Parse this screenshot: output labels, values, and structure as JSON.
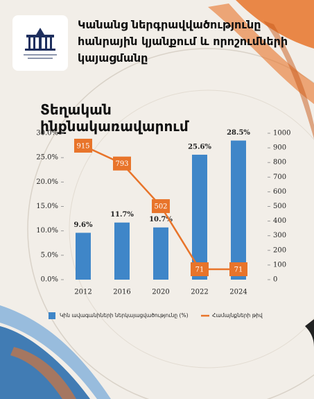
{
  "chart_data": {
    "type": "bar",
    "title": "Կանանց ներգրավվածությունը հանրային կյանքում և որոշումների կայացմանը",
    "subtitle": "Տեղական ինքնակառավարում",
    "categories": [
      "2012",
      "2016",
      "2020",
      "2022",
      "2024"
    ],
    "series": [
      {
        "name": "Կին ավագանիների ներկայացվածությունը (%)",
        "type": "bar",
        "color": "#3f86c8",
        "values": [
          9.6,
          11.7,
          10.7,
          25.6,
          28.5
        ],
        "value_labels": [
          "9.6%",
          "11.7%",
          "10.7%",
          "25.6%",
          "28.5%"
        ]
      },
      {
        "name": "Համայնքների թիվ",
        "type": "line",
        "axis": "y2",
        "color": "#e8742a",
        "values": [
          915,
          793,
          502,
          71,
          71
        ]
      }
    ],
    "ylim": [
      0,
      30
    ],
    "yticks": [
      {
        "value": 0,
        "label": "0.0%"
      },
      {
        "value": 5,
        "label": "5.0%"
      },
      {
        "value": 10,
        "label": "10.0%"
      },
      {
        "value": 15,
        "label": "15.0%"
      },
      {
        "value": 20,
        "label": "20.0%"
      },
      {
        "value": 25,
        "label": "25.0%"
      },
      {
        "value": 30,
        "label": "30.0%"
      }
    ],
    "y2lim": [
      0,
      1000
    ],
    "y2ticks": [
      0,
      100,
      200,
      300,
      400,
      500,
      600,
      700,
      800,
      900,
      1000
    ]
  }
}
